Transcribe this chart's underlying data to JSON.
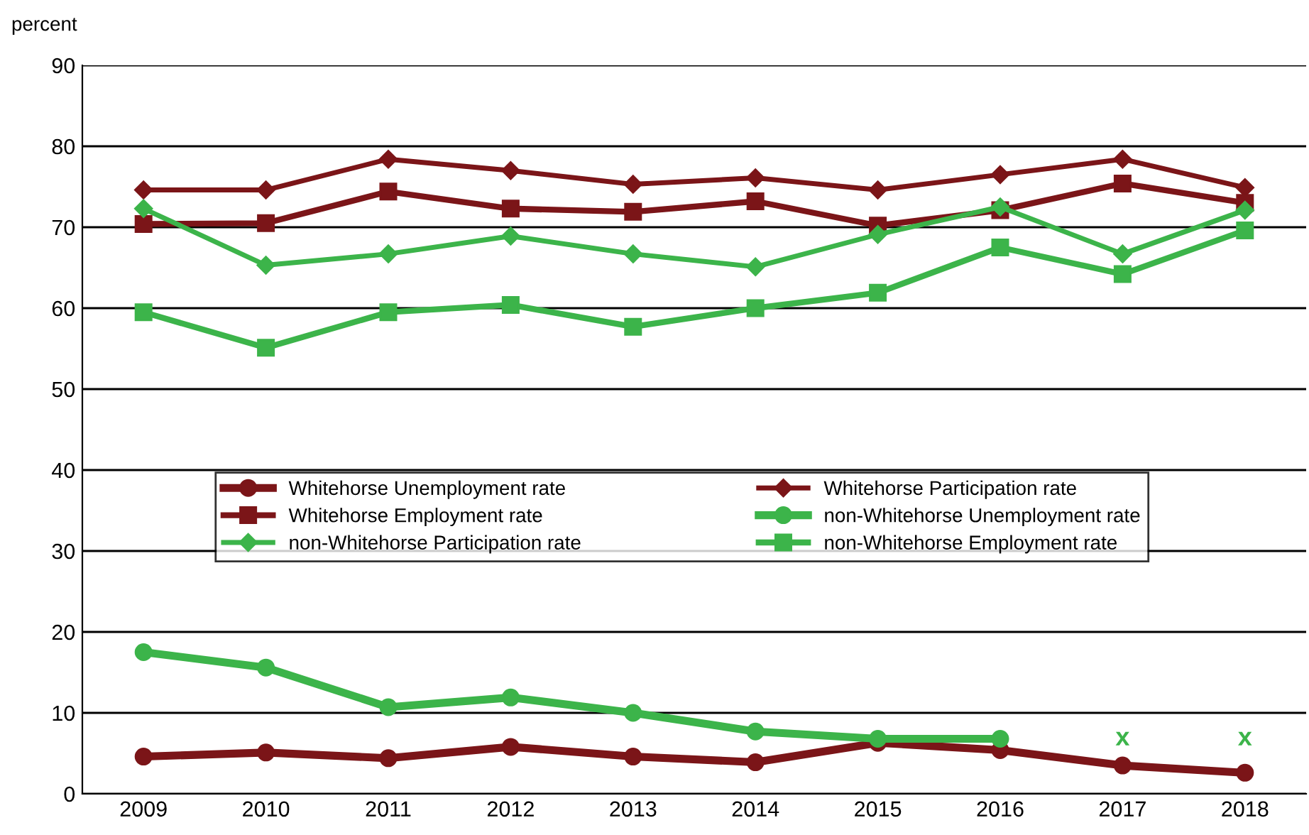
{
  "chart_data": {
    "type": "line",
    "ylabel": "percent",
    "categories": [
      "2009",
      "2010",
      "2011",
      "2012",
      "2013",
      "2014",
      "2015",
      "2016",
      "2017",
      "2018"
    ],
    "series": [
      {
        "name": "Whitehorse Unemployment rate",
        "color": "#7b1518",
        "marker": "circle",
        "values": [
          4.6,
          5.1,
          4.4,
          5.8,
          4.6,
          3.9,
          6.3,
          5.4,
          3.5,
          2.6
        ]
      },
      {
        "name": "Whitehorse Participation rate",
        "color": "#7b1518",
        "marker": "diamond",
        "values": [
          74.6,
          74.6,
          78.4,
          77.0,
          75.3,
          76.1,
          74.6,
          76.5,
          78.4,
          74.9
        ]
      },
      {
        "name": "Whitehorse Employment rate",
        "color": "#7b1518",
        "marker": "square",
        "values": [
          70.4,
          70.5,
          74.4,
          72.3,
          71.9,
          73.2,
          70.2,
          72.1,
          75.4,
          73.0
        ]
      },
      {
        "name": "non-Whitehorse Unemployment rate",
        "color": "#3cb44a",
        "marker": "circle",
        "values": [
          17.5,
          15.6,
          10.7,
          11.9,
          10.0,
          7.7,
          6.8,
          6.8,
          null,
          null
        ]
      },
      {
        "name": "non-Whitehorse Participation rate",
        "color": "#3cb44a",
        "marker": "diamond",
        "values": [
          72.3,
          65.3,
          66.7,
          68.9,
          66.7,
          65.1,
          69.1,
          72.5,
          66.7,
          72.1
        ]
      },
      {
        "name": "non-Whitehorse Employment rate",
        "color": "#3cb44a",
        "marker": "square",
        "values": [
          59.5,
          55.1,
          59.5,
          60.4,
          57.7,
          60.0,
          61.9,
          67.5,
          64.2,
          69.6
        ]
      }
    ],
    "annotations": [
      "x",
      "x"
    ],
    "ylim": [
      0,
      90
    ],
    "yticks": [
      0,
      10,
      20,
      30,
      40,
      50,
      60,
      70,
      80,
      90
    ],
    "grid": "y",
    "legend": "center"
  }
}
